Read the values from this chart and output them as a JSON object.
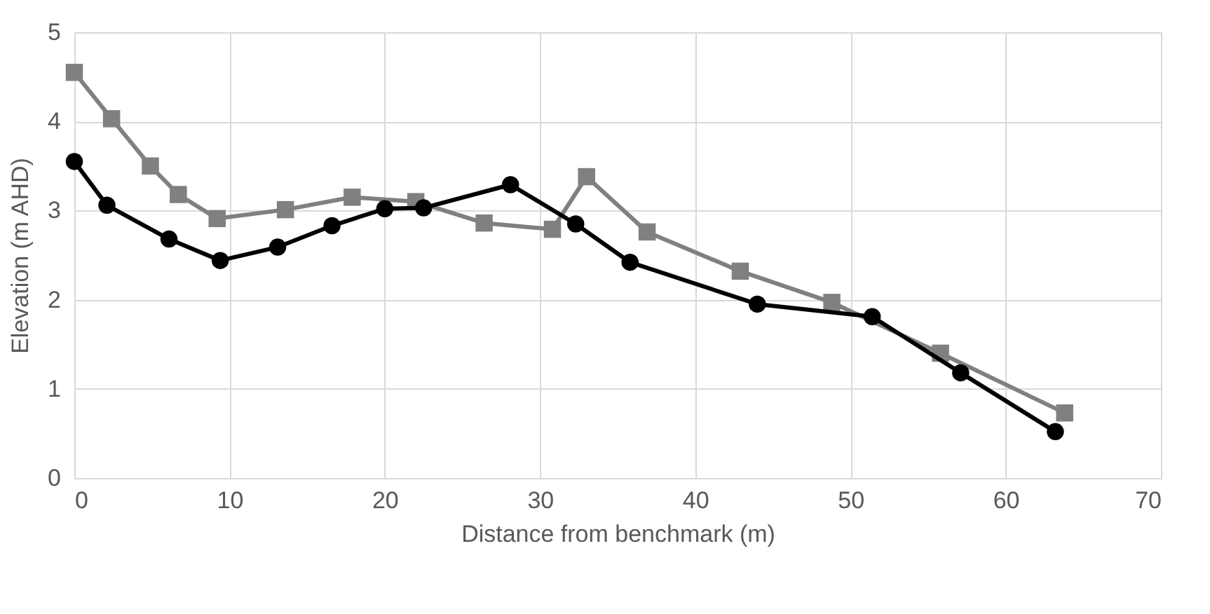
{
  "chart_data": {
    "type": "line",
    "xlabel": "Distance from benchmark (m)",
    "ylabel": "Elevation (m AHD)",
    "xlim": [
      0,
      70
    ],
    "xticks": [
      0,
      10,
      20,
      30,
      40,
      50,
      60,
      70
    ],
    "ylim": [
      0,
      5
    ],
    "yticks": [
      0,
      1,
      2,
      3,
      4,
      5
    ],
    "grid": true,
    "line_style": "solid",
    "series": [
      {
        "color": "#808080",
        "marker": "square",
        "x": [
          0,
          2.4,
          4.9,
          6.7,
          9.2,
          13.6,
          17.9,
          22.0,
          26.4,
          30.8,
          33.0,
          36.9,
          42.9,
          48.8,
          55.8,
          63.8
        ],
        "values": [
          4.55,
          4.03,
          3.5,
          3.18,
          2.91,
          3.01,
          3.15,
          3.1,
          2.86,
          2.79,
          3.38,
          2.76,
          2.32,
          1.97,
          1.4,
          0.73
        ]
      },
      {
        "color": "#000000",
        "marker": "circle",
        "x": [
          0,
          2.1,
          6.1,
          9.4,
          13.1,
          16.6,
          20.0,
          22.5,
          28.1,
          32.3,
          35.8,
          44.0,
          51.4,
          57.1,
          63.2
        ],
        "values": [
          3.55,
          3.06,
          2.68,
          2.44,
          2.59,
          2.83,
          3.02,
          3.03,
          3.29,
          2.85,
          2.42,
          1.95,
          1.81,
          1.18,
          0.52
        ]
      }
    ]
  }
}
